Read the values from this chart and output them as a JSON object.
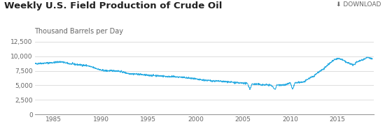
{
  "title": "Weekly U.S. Field Production of Crude Oil",
  "ylabel": "Thousand Barrels per Day",
  "legend_label": "Weekly U.S. Field Production of Crude Oil",
  "line_color": "#29ABE2",
  "background_color": "#ffffff",
  "grid_color": "#d8d8d8",
  "ylim": [
    0,
    13000
  ],
  "yticks": [
    0,
    2500,
    5000,
    7500,
    10000,
    12500
  ],
  "ytick_labels": [
    "0",
    "2,500",
    "5,000",
    "7,500",
    "10,000",
    "12,500"
  ],
  "xlim_start": 1983.0,
  "xlim_end": 2018.8,
  "xtick_years": [
    1985,
    1990,
    1995,
    2000,
    2005,
    2010,
    2015
  ],
  "title_fontsize": 9.5,
  "ylabel_fontsize": 7,
  "tick_fontsize": 6.5,
  "legend_fontsize": 6.5,
  "download_text": "⬇ DOWNLOAD",
  "anchors": [
    [
      1983.0,
      8700
    ],
    [
      1984.0,
      8800
    ],
    [
      1985.0,
      8900
    ],
    [
      1985.8,
      9050
    ],
    [
      1986.5,
      8750
    ],
    [
      1987.5,
      8550
    ],
    [
      1988.5,
      8400
    ],
    [
      1989.5,
      7900
    ],
    [
      1990.0,
      7600
    ],
    [
      1990.5,
      7500
    ],
    [
      1991.5,
      7500
    ],
    [
      1992.0,
      7400
    ],
    [
      1993.0,
      7000
    ],
    [
      1994.0,
      6900
    ],
    [
      1994.5,
      6800
    ],
    [
      1995.0,
      6700
    ],
    [
      1995.5,
      6700
    ],
    [
      1996.5,
      6600
    ],
    [
      1997.0,
      6500
    ],
    [
      1997.5,
      6500
    ],
    [
      1998.5,
      6400
    ],
    [
      1999.5,
      6200
    ],
    [
      2000.5,
      5950
    ],
    [
      2001.5,
      5800
    ],
    [
      2002.5,
      5700
    ],
    [
      2003.5,
      5600
    ],
    [
      2004.0,
      5500
    ],
    [
      2004.5,
      5400
    ],
    [
      2005.0,
      5400
    ],
    [
      2005.5,
      5300
    ],
    [
      2005.75,
      4300
    ],
    [
      2005.95,
      5200
    ],
    [
      2006.5,
      5200
    ],
    [
      2007.0,
      5100
    ],
    [
      2007.5,
      5100
    ],
    [
      2008.0,
      5000
    ],
    [
      2008.4,
      4300
    ],
    [
      2008.6,
      5050
    ],
    [
      2009.0,
      5100
    ],
    [
      2009.5,
      5050
    ],
    [
      2010.0,
      5450
    ],
    [
      2010.25,
      4300
    ],
    [
      2010.5,
      5400
    ],
    [
      2011.0,
      5500
    ],
    [
      2011.5,
      5600
    ],
    [
      2012.0,
      6200
    ],
    [
      2012.5,
      6600
    ],
    [
      2013.0,
      7300
    ],
    [
      2013.5,
      7800
    ],
    [
      2014.0,
      8500
    ],
    [
      2014.5,
      9200
    ],
    [
      2015.0,
      9600
    ],
    [
      2015.3,
      9500
    ],
    [
      2015.5,
      9400
    ],
    [
      2016.0,
      8900
    ],
    [
      2016.5,
      8600
    ],
    [
      2016.8,
      8500
    ],
    [
      2017.0,
      9000
    ],
    [
      2017.3,
      9200
    ],
    [
      2017.7,
      9400
    ],
    [
      2018.0,
      9700
    ],
    [
      2018.3,
      9800
    ],
    [
      2018.5,
      9600
    ],
    [
      2018.7,
      9500
    ]
  ]
}
